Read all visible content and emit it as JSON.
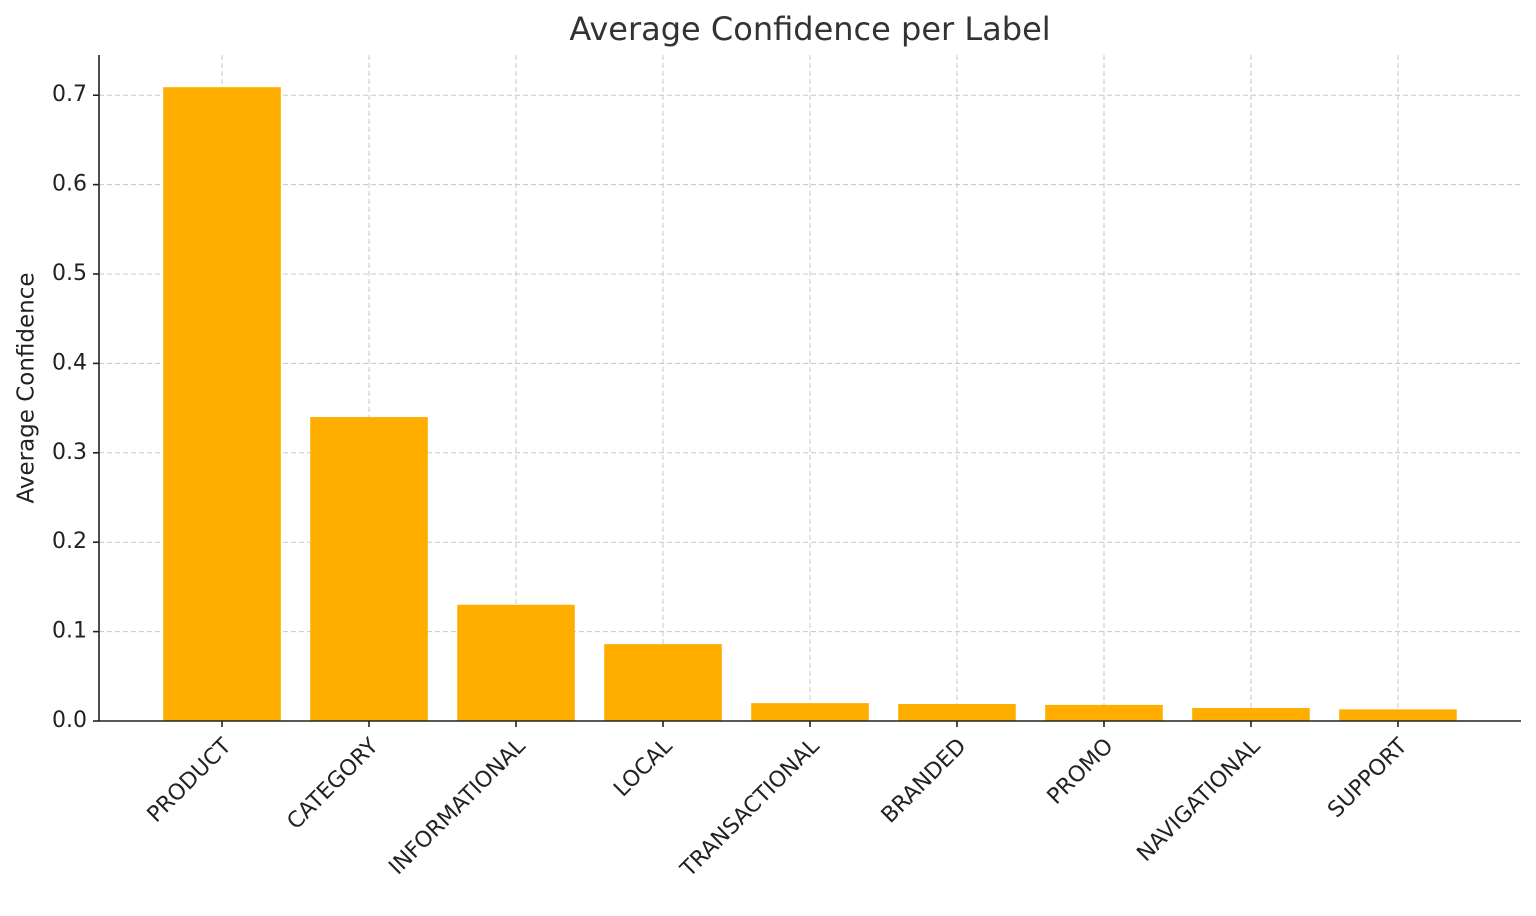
{
  "chart_data": {
    "type": "bar",
    "title": "Average Confidence per Label",
    "ylabel": "Average Confidence",
    "categories": [
      "PRODUCT",
      "CATEGORY",
      "INFORMATIONAL",
      "LOCAL",
      "TRANSACTIONAL",
      "BRANDED",
      "PROMO",
      "NAVIGATIONAL",
      "SUPPORT"
    ],
    "values": [
      0.709,
      0.34,
      0.13,
      0.086,
      0.02,
      0.019,
      0.018,
      0.0145,
      0.013
    ],
    "color": "#ffae00",
    "ylim": [
      0,
      0.745
    ],
    "yticks": [
      {
        "value": 0,
        "label": "0.0"
      },
      0.1,
      0.2,
      0.3,
      0.4,
      0.5,
      0.6,
      0.7
    ],
    "grid": true
  }
}
